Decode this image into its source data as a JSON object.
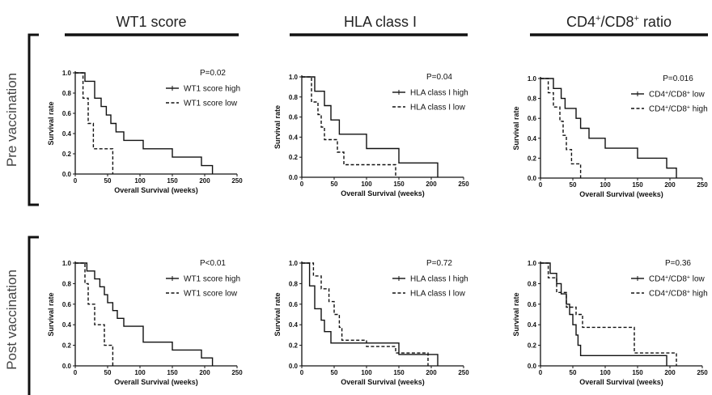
{
  "columns": [
    {
      "title": "WT1 score",
      "sup1": "",
      "title2": "",
      "sup2": ""
    },
    {
      "title": "HLA class I",
      "sup1": "",
      "title2": "",
      "sup2": ""
    },
    {
      "title": "CD4",
      "sup1": "+",
      "title2": "/CD8",
      "sup2": "+",
      "tail": " ratio"
    }
  ],
  "rows": [
    "Pre vaccination",
    "Post vaccination"
  ],
  "chart_data": [
    {
      "type": "line",
      "id": "pre-wt1",
      "title": "",
      "xlabel": "Overall Survival (weeks)",
      "ylabel": "Survival rate",
      "xlim": [
        0,
        250
      ],
      "ylim": [
        0,
        1.0
      ],
      "xticks": [
        "0",
        "50",
        "100",
        "150",
        "200",
        "250"
      ],
      "yticks": [
        "0.0",
        "0.2",
        "0.4",
        "0.6",
        "0.8",
        "1.0"
      ],
      "pvalue": "P=0.02",
      "series": [
        {
          "name": "WT1 score high",
          "style": "solid",
          "steps": [
            [
              0,
              1.0
            ],
            [
              15,
              1.0
            ],
            [
              15,
              0.917
            ],
            [
              30,
              0.917
            ],
            [
              30,
              0.75
            ],
            [
              40,
              0.75
            ],
            [
              40,
              0.667
            ],
            [
              48,
              0.667
            ],
            [
              48,
              0.583
            ],
            [
              55,
              0.583
            ],
            [
              55,
              0.5
            ],
            [
              63,
              0.5
            ],
            [
              63,
              0.417
            ],
            [
              75,
              0.417
            ],
            [
              75,
              0.333
            ],
            [
              105,
              0.333
            ],
            [
              105,
              0.25
            ],
            [
              150,
              0.25
            ],
            [
              150,
              0.167
            ],
            [
              195,
              0.167
            ],
            [
              195,
              0.083
            ],
            [
              212,
              0.083
            ],
            [
              212,
              0
            ]
          ]
        },
        {
          "name": "WT1 score low",
          "style": "dashed",
          "steps": [
            [
              0,
              1.0
            ],
            [
              12,
              1.0
            ],
            [
              12,
              0.75
            ],
            [
              20,
              0.75
            ],
            [
              20,
              0.5
            ],
            [
              28,
              0.5
            ],
            [
              28,
              0.25
            ],
            [
              58,
              0.25
            ],
            [
              58,
              0
            ]
          ]
        }
      ]
    },
    {
      "type": "line",
      "id": "pre-hla",
      "title": "",
      "xlabel": "Overall Survival (weeks)",
      "ylabel": "Survival rate",
      "xlim": [
        0,
        250
      ],
      "ylim": [
        0,
        1.0
      ],
      "xticks": [
        "0",
        "50",
        "100",
        "150",
        "200",
        "250"
      ],
      "yticks": [
        "0.0",
        "0.2",
        "0.4",
        "0.6",
        "0.8",
        "1.0"
      ],
      "pvalue": "P=0.04",
      "series": [
        {
          "name": "HLA class I  high",
          "style": "solid",
          "steps": [
            [
              0,
              1.0
            ],
            [
              20,
              1.0
            ],
            [
              20,
              0.857
            ],
            [
              35,
              0.857
            ],
            [
              35,
              0.714
            ],
            [
              45,
              0.714
            ],
            [
              45,
              0.571
            ],
            [
              58,
              0.571
            ],
            [
              58,
              0.429
            ],
            [
              100,
              0.429
            ],
            [
              100,
              0.286
            ],
            [
              150,
              0.286
            ],
            [
              150,
              0.143
            ],
            [
              195,
              0.143
            ],
            [
              195,
              0.143
            ],
            [
              210,
              0.143
            ],
            [
              210,
              0
            ]
          ]
        },
        {
          "name": "HLA class I  low",
          "style": "dashed",
          "steps": [
            [
              0,
              1.0
            ],
            [
              15,
              1.0
            ],
            [
              15,
              0.75
            ],
            [
              25,
              0.75
            ],
            [
              25,
              0.625
            ],
            [
              30,
              0.625
            ],
            [
              30,
              0.5
            ],
            [
              35,
              0.5
            ],
            [
              35,
              0.375
            ],
            [
              55,
              0.375
            ],
            [
              55,
              0.25
            ],
            [
              65,
              0.25
            ],
            [
              65,
              0.125
            ],
            [
              145,
              0.125
            ],
            [
              145,
              0
            ]
          ]
        }
      ]
    },
    {
      "type": "line",
      "id": "pre-cd4cd8",
      "title": "",
      "xlabel": "Overall Survival (weeks)",
      "ylabel": "Survival rate",
      "xlim": [
        0,
        250
      ],
      "ylim": [
        0,
        1.0
      ],
      "xticks": [
        "0",
        "50",
        "100",
        "150",
        "200",
        "250"
      ],
      "yticks": [
        "0.0",
        "0.2",
        "0.4",
        "0.6",
        "0.8",
        "1.0"
      ],
      "pvalue": "P=0.016",
      "series": [
        {
          "name": "CD4+/CD8+ low",
          "style": "solid",
          "steps": [
            [
              0,
              1.0
            ],
            [
              20,
              1.0
            ],
            [
              20,
              0.9
            ],
            [
              32,
              0.9
            ],
            [
              32,
              0.8
            ],
            [
              38,
              0.8
            ],
            [
              38,
              0.7
            ],
            [
              55,
              0.7
            ],
            [
              55,
              0.6
            ],
            [
              62,
              0.6
            ],
            [
              62,
              0.5
            ],
            [
              75,
              0.5
            ],
            [
              75,
              0.4
            ],
            [
              100,
              0.4
            ],
            [
              100,
              0.3
            ],
            [
              150,
              0.3
            ],
            [
              150,
              0.2
            ],
            [
              195,
              0.2
            ],
            [
              195,
              0.1
            ],
            [
              210,
              0.1
            ],
            [
              210,
              0
            ]
          ]
        },
        {
          "name": "CD4+/CD8+ high",
          "style": "dashed",
          "steps": [
            [
              0,
              1.0
            ],
            [
              12,
              1.0
            ],
            [
              12,
              0.857
            ],
            [
              20,
              0.857
            ],
            [
              20,
              0.714
            ],
            [
              30,
              0.714
            ],
            [
              30,
              0.571
            ],
            [
              35,
              0.571
            ],
            [
              35,
              0.429
            ],
            [
              40,
              0.429
            ],
            [
              40,
              0.286
            ],
            [
              48,
              0.286
            ],
            [
              48,
              0.143
            ],
            [
              62,
              0.143
            ],
            [
              62,
              0
            ]
          ]
        }
      ]
    },
    {
      "type": "line",
      "id": "post-wt1",
      "title": "",
      "xlabel": "Overall Survival (weeks)",
      "ylabel": "Survival rate",
      "xlim": [
        0,
        250
      ],
      "ylim": [
        0,
        1.0
      ],
      "xticks": [
        "0",
        "50",
        "100",
        "150",
        "200",
        "250"
      ],
      "yticks": [
        "0.0",
        "0.2",
        "0.4",
        "0.6",
        "0.8",
        "1.0"
      ],
      "pvalue": "P<0.01",
      "series": [
        {
          "name": "WT1 score high",
          "style": "solid",
          "steps": [
            [
              0,
              1.0
            ],
            [
              18,
              1.0
            ],
            [
              18,
              0.923
            ],
            [
              30,
              0.923
            ],
            [
              30,
              0.846
            ],
            [
              38,
              0.846
            ],
            [
              38,
              0.769
            ],
            [
              45,
              0.769
            ],
            [
              45,
              0.692
            ],
            [
              50,
              0.692
            ],
            [
              50,
              0.615
            ],
            [
              58,
              0.615
            ],
            [
              58,
              0.538
            ],
            [
              65,
              0.538
            ],
            [
              65,
              0.462
            ],
            [
              75,
              0.462
            ],
            [
              75,
              0.385
            ],
            [
              105,
              0.385
            ],
            [
              105,
              0.231
            ],
            [
              150,
              0.231
            ],
            [
              150,
              0.154
            ],
            [
              195,
              0.154
            ],
            [
              195,
              0.077
            ],
            [
              212,
              0.077
            ],
            [
              212,
              0
            ]
          ]
        },
        {
          "name": "WT1 score low",
          "style": "dashed",
          "steps": [
            [
              0,
              1.0
            ],
            [
              15,
              1.0
            ],
            [
              15,
              0.8
            ],
            [
              20,
              0.8
            ],
            [
              20,
              0.6
            ],
            [
              30,
              0.6
            ],
            [
              30,
              0.4
            ],
            [
              45,
              0.4
            ],
            [
              45,
              0.2
            ],
            [
              58,
              0.2
            ],
            [
              58,
              0
            ]
          ]
        }
      ]
    },
    {
      "type": "line",
      "id": "post-hla",
      "title": "",
      "xlabel": "Overall Survival (weeks)",
      "ylabel": "Survival rate",
      "xlim": [
        0,
        250
      ],
      "ylim": [
        0,
        1.0
      ],
      "xticks": [
        "0",
        "50",
        "100",
        "150",
        "200",
        "250"
      ],
      "yticks": [
        "0.0",
        "0.2",
        "0.4",
        "0.6",
        "0.8",
        "1.0"
      ],
      "pvalue": "P=0.72",
      "series": [
        {
          "name": "HLA class I  high",
          "style": "solid",
          "steps": [
            [
              0,
              1.0
            ],
            [
              12,
              1.0
            ],
            [
              12,
              0.778
            ],
            [
              20,
              0.778
            ],
            [
              20,
              0.556
            ],
            [
              30,
              0.556
            ],
            [
              30,
              0.444
            ],
            [
              35,
              0.444
            ],
            [
              35,
              0.333
            ],
            [
              45,
              0.333
            ],
            [
              45,
              0.222
            ],
            [
              100,
              0.222
            ],
            [
              100,
              0.222
            ],
            [
              150,
              0.222
            ],
            [
              150,
              0.111
            ],
            [
              210,
              0.111
            ],
            [
              210,
              0
            ]
          ]
        },
        {
          "name": "HLA class I  low",
          "style": "dashed",
          "steps": [
            [
              0,
              1.0
            ],
            [
              18,
              1.0
            ],
            [
              18,
              0.875
            ],
            [
              30,
              0.875
            ],
            [
              30,
              0.75
            ],
            [
              42,
              0.75
            ],
            [
              42,
              0.625
            ],
            [
              50,
              0.625
            ],
            [
              50,
              0.5
            ],
            [
              58,
              0.5
            ],
            [
              58,
              0.375
            ],
            [
              62,
              0.375
            ],
            [
              62,
              0.25
            ],
            [
              100,
              0.25
            ],
            [
              100,
              0.188
            ],
            [
              145,
              0.188
            ],
            [
              145,
              0.125
            ],
            [
              195,
              0.125
            ],
            [
              195,
              0
            ]
          ]
        }
      ]
    },
    {
      "type": "line",
      "id": "post-cd4cd8",
      "title": "",
      "xlabel": "Overall Survival (weeks)",
      "ylabel": "Survival rate",
      "xlim": [
        0,
        250
      ],
      "ylim": [
        0,
        1.0
      ],
      "xticks": [
        "0",
        "50",
        "100",
        "150",
        "200",
        "250"
      ],
      "yticks": [
        "0.0",
        "0.2",
        "0.4",
        "0.6",
        "0.8",
        "1.0"
      ],
      "pvalue": "P=0.36",
      "series": [
        {
          "name": "CD4+/CD8+ low",
          "style": "solid",
          "steps": [
            [
              0,
              1.0
            ],
            [
              15,
              1.0
            ],
            [
              15,
              0.9
            ],
            [
              25,
              0.9
            ],
            [
              25,
              0.8
            ],
            [
              32,
              0.8
            ],
            [
              32,
              0.7
            ],
            [
              40,
              0.7
            ],
            [
              40,
              0.6
            ],
            [
              45,
              0.6
            ],
            [
              45,
              0.5
            ],
            [
              50,
              0.5
            ],
            [
              50,
              0.4
            ],
            [
              55,
              0.4
            ],
            [
              55,
              0.3
            ],
            [
              58,
              0.3
            ],
            [
              58,
              0.2
            ],
            [
              62,
              0.2
            ],
            [
              62,
              0.1
            ],
            [
              195,
              0.1
            ],
            [
              195,
              0
            ]
          ]
        },
        {
          "name": "CD4+/CD8+ high",
          "style": "dashed",
          "steps": [
            [
              0,
              1.0
            ],
            [
              12,
              1.0
            ],
            [
              12,
              0.857
            ],
            [
              25,
              0.857
            ],
            [
              25,
              0.714
            ],
            [
              40,
              0.714
            ],
            [
              40,
              0.571
            ],
            [
              55,
              0.571
            ],
            [
              55,
              0.5
            ],
            [
              65,
              0.5
            ],
            [
              65,
              0.375
            ],
            [
              100,
              0.375
            ],
            [
              100,
              0.375
            ],
            [
              145,
              0.375
            ],
            [
              145,
              0.125
            ],
            [
              210,
              0.125
            ],
            [
              210,
              0
            ]
          ]
        }
      ]
    }
  ],
  "colors": {
    "line": "#111111",
    "text": "#111111",
    "header": "#222222",
    "rowLabel": "#444444"
  }
}
